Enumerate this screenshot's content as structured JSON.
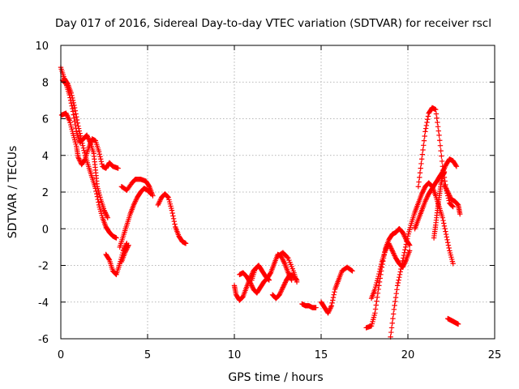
{
  "chart_data": {
    "type": "scatter",
    "title": "Day 017 of 2016, Sidereal Day-to-day VTEC variation (SDTVAR) for receiver rscl",
    "xlabel": "GPS time / hours",
    "ylabel": "SDTVAR / TECUs",
    "xlim": [
      0,
      25
    ],
    "ylim": [
      -6,
      10
    ],
    "xticks": [
      0,
      5,
      10,
      15,
      20,
      25
    ],
    "yticks": [
      -6,
      -4,
      -2,
      0,
      2,
      4,
      6,
      8,
      10
    ],
    "grid": true,
    "marker": "+",
    "color": "#ff0000",
    "series": [
      {
        "name": "s1",
        "points": [
          [
            0.0,
            8.8
          ],
          [
            0.2,
            8.2
          ],
          [
            0.4,
            7.9
          ],
          [
            0.6,
            7.4
          ],
          [
            0.8,
            6.6
          ],
          [
            1.0,
            5.6
          ],
          [
            1.2,
            4.8
          ],
          [
            1.4,
            4.0
          ],
          [
            1.6,
            3.4
          ],
          [
            1.8,
            2.8
          ],
          [
            2.0,
            2.2
          ],
          [
            2.2,
            1.3
          ],
          [
            2.4,
            0.6
          ],
          [
            2.6,
            0.1
          ],
          [
            2.8,
            -0.2
          ],
          [
            3.0,
            -0.4
          ],
          [
            3.2,
            -0.5
          ]
        ]
      },
      {
        "name": "s2",
        "points": [
          [
            0.05,
            6.2
          ],
          [
            0.3,
            6.3
          ],
          [
            0.5,
            5.9
          ],
          [
            0.7,
            5.2
          ],
          [
            0.9,
            4.5
          ],
          [
            1.0,
            3.9
          ],
          [
            1.2,
            3.5
          ],
          [
            1.4,
            3.8
          ],
          [
            1.6,
            4.4
          ],
          [
            1.8,
            4.9
          ],
          [
            2.0,
            4.8
          ],
          [
            2.2,
            4.2
          ],
          [
            2.4,
            3.4
          ],
          [
            2.6,
            3.3
          ],
          [
            2.8,
            3.6
          ],
          [
            3.0,
            3.4
          ],
          [
            3.3,
            3.3
          ]
        ]
      },
      {
        "name": "s3",
        "points": [
          [
            0.1,
            8.1
          ],
          [
            0.3,
            7.9
          ],
          [
            0.5,
            7.3
          ],
          [
            0.7,
            6.4
          ],
          [
            0.9,
            5.3
          ],
          [
            1.1,
            4.7
          ],
          [
            1.3,
            4.9
          ],
          [
            1.5,
            5.1
          ],
          [
            1.7,
            4.7
          ],
          [
            1.9,
            4.1
          ],
          [
            2.0,
            3.2
          ],
          [
            2.1,
            2.3
          ],
          [
            2.3,
            1.6
          ],
          [
            2.5,
            1.0
          ],
          [
            2.7,
            0.6
          ]
        ]
      },
      {
        "name": "s4",
        "points": [
          [
            3.5,
            2.3
          ],
          [
            3.8,
            2.1
          ],
          [
            4.1,
            2.5
          ],
          [
            4.3,
            2.7
          ],
          [
            4.6,
            2.7
          ],
          [
            4.9,
            2.6
          ],
          [
            5.1,
            2.3
          ],
          [
            5.3,
            1.8
          ]
        ]
      },
      {
        "name": "s5",
        "points": [
          [
            3.4,
            -1.0
          ],
          [
            3.6,
            -0.4
          ],
          [
            3.8,
            0.2
          ],
          [
            4.0,
            0.8
          ],
          [
            4.2,
            1.3
          ],
          [
            4.4,
            1.7
          ],
          [
            4.6,
            2.0
          ],
          [
            4.8,
            2.2
          ],
          [
            5.0,
            2.1
          ],
          [
            5.2,
            1.9
          ]
        ]
      },
      {
        "name": "s6",
        "points": [
          [
            2.6,
            -1.4
          ],
          [
            2.8,
            -1.7
          ],
          [
            3.0,
            -2.3
          ],
          [
            3.2,
            -2.5
          ],
          [
            3.4,
            -1.9
          ],
          [
            3.6,
            -1.2
          ],
          [
            3.8,
            -0.8
          ]
        ]
      },
      {
        "name": "s7",
        "points": [
          [
            3.5,
            -1.8
          ],
          [
            3.7,
            -1.3
          ],
          [
            3.9,
            -0.9
          ]
        ]
      },
      {
        "name": "s8",
        "points": [
          [
            5.6,
            1.3
          ],
          [
            5.8,
            1.7
          ],
          [
            6.0,
            1.9
          ],
          [
            6.2,
            1.7
          ],
          [
            6.4,
            1.0
          ],
          [
            6.6,
            0.1
          ],
          [
            6.8,
            -0.4
          ],
          [
            7.0,
            -0.7
          ],
          [
            7.2,
            -0.8
          ]
        ]
      },
      {
        "name": "s9",
        "points": [
          [
            10.0,
            -3.1
          ],
          [
            10.1,
            -3.6
          ],
          [
            10.3,
            -3.9
          ],
          [
            10.5,
            -3.7
          ],
          [
            10.7,
            -3.2
          ],
          [
            10.9,
            -2.7
          ],
          [
            11.1,
            -2.3
          ],
          [
            11.3,
            -2.1
          ]
        ]
      },
      {
        "name": "s10",
        "points": [
          [
            10.3,
            -2.5
          ],
          [
            10.5,
            -2.4
          ],
          [
            10.7,
            -2.6
          ],
          [
            10.9,
            -2.9
          ],
          [
            11.1,
            -3.3
          ],
          [
            11.3,
            -3.5
          ],
          [
            11.5,
            -3.2
          ],
          [
            11.7,
            -2.9
          ],
          [
            11.9,
            -2.7
          ],
          [
            12.1,
            -2.4
          ],
          [
            12.3,
            -1.9
          ],
          [
            12.5,
            -1.4
          ],
          [
            12.7,
            -1.5
          ],
          [
            12.9,
            -1.9
          ],
          [
            13.1,
            -2.4
          ],
          [
            13.3,
            -2.8
          ]
        ]
      },
      {
        "name": "s11",
        "points": [
          [
            11.0,
            -2.8
          ],
          [
            11.2,
            -2.2
          ],
          [
            11.4,
            -2.0
          ],
          [
            11.6,
            -2.3
          ],
          [
            11.8,
            -2.6
          ],
          [
            12.0,
            -2.8
          ]
        ]
      },
      {
        "name": "s12",
        "points": [
          [
            12.2,
            -3.6
          ],
          [
            12.4,
            -3.8
          ],
          [
            12.6,
            -3.6
          ],
          [
            12.8,
            -3.2
          ],
          [
            13.0,
            -2.8
          ],
          [
            13.2,
            -2.5
          ],
          [
            13.4,
            -2.6
          ],
          [
            13.6,
            -2.8
          ]
        ]
      },
      {
        "name": "s13",
        "points": [
          [
            12.5,
            -1.5
          ],
          [
            12.8,
            -1.3
          ],
          [
            13.1,
            -1.6
          ],
          [
            13.4,
            -2.3
          ],
          [
            13.6,
            -2.9
          ]
        ]
      },
      {
        "name": "s14",
        "points": [
          [
            13.9,
            -4.1
          ],
          [
            14.1,
            -4.2
          ],
          [
            14.3,
            -4.2
          ],
          [
            14.5,
            -4.3
          ],
          [
            14.7,
            -4.3
          ]
        ]
      },
      {
        "name": "s15",
        "points": [
          [
            15.0,
            -4.0
          ],
          [
            15.2,
            -4.3
          ],
          [
            15.4,
            -4.6
          ],
          [
            15.6,
            -4.2
          ],
          [
            15.8,
            -3.3
          ],
          [
            16.0,
            -2.8
          ],
          [
            16.2,
            -2.3
          ],
          [
            16.5,
            -2.1
          ],
          [
            16.8,
            -2.3
          ]
        ]
      },
      {
        "name": "s16",
        "points": [
          [
            17.6,
            -5.4
          ],
          [
            17.9,
            -5.3
          ],
          [
            18.1,
            -4.6
          ],
          [
            18.3,
            -3.3
          ],
          [
            18.5,
            -2.1
          ],
          [
            18.7,
            -1.1
          ],
          [
            18.9,
            -0.6
          ],
          [
            19.1,
            -0.3
          ],
          [
            19.3,
            -0.2
          ],
          [
            19.5,
            0.0
          ],
          [
            19.7,
            -0.2
          ],
          [
            19.9,
            -0.6
          ],
          [
            20.1,
            -0.9
          ]
        ]
      },
      {
        "name": "s17",
        "points": [
          [
            17.9,
            -3.8
          ],
          [
            18.1,
            -3.3
          ],
          [
            18.3,
            -2.6
          ],
          [
            18.5,
            -1.8
          ],
          [
            18.7,
            -1.2
          ],
          [
            18.9,
            -0.8
          ],
          [
            19.1,
            -1.2
          ],
          [
            19.3,
            -1.6
          ],
          [
            19.5,
            -1.9
          ],
          [
            19.7,
            -2.1
          ],
          [
            19.9,
            -1.7
          ],
          [
            20.1,
            -1.2
          ]
        ]
      },
      {
        "name": "s18",
        "points": [
          [
            19.0,
            -5.9
          ],
          [
            19.2,
            -4.4
          ],
          [
            19.4,
            -3.1
          ],
          [
            19.6,
            -2.2
          ],
          [
            19.8,
            -1.3
          ],
          [
            20.0,
            -0.4
          ],
          [
            20.2,
            0.3
          ],
          [
            20.4,
            0.9
          ],
          [
            20.6,
            1.4
          ],
          [
            20.8,
            1.9
          ],
          [
            21.0,
            2.3
          ],
          [
            21.2,
            2.5
          ],
          [
            21.4,
            2.3
          ],
          [
            21.6,
            1.8
          ],
          [
            21.8,
            1.2
          ],
          [
            22.0,
            0.6
          ],
          [
            22.2,
            -0.3
          ],
          [
            22.4,
            -1.2
          ],
          [
            22.6,
            -1.9
          ]
        ]
      },
      {
        "name": "s19",
        "points": [
          [
            20.6,
            2.3
          ],
          [
            20.8,
            3.8
          ],
          [
            21.0,
            5.3
          ],
          [
            21.2,
            6.3
          ],
          [
            21.4,
            6.6
          ],
          [
            21.6,
            6.5
          ],
          [
            21.8,
            5.1
          ],
          [
            22.0,
            3.4
          ],
          [
            22.2,
            2.2
          ],
          [
            22.4,
            1.4
          ],
          [
            22.6,
            1.2
          ]
        ]
      },
      {
        "name": "s20",
        "points": [
          [
            20.4,
            0.0
          ],
          [
            20.6,
            0.5
          ],
          [
            20.8,
            1.0
          ],
          [
            21.0,
            1.5
          ],
          [
            21.2,
            1.9
          ],
          [
            21.4,
            2.2
          ],
          [
            21.6,
            2.5
          ],
          [
            21.8,
            2.8
          ],
          [
            22.0,
            3.1
          ],
          [
            22.2,
            3.5
          ],
          [
            22.4,
            3.8
          ],
          [
            22.6,
            3.7
          ],
          [
            22.8,
            3.4
          ]
        ]
      },
      {
        "name": "s21",
        "points": [
          [
            22.1,
            2.4
          ],
          [
            22.3,
            2.0
          ],
          [
            22.5,
            1.6
          ],
          [
            22.7,
            1.5
          ],
          [
            22.9,
            1.3
          ],
          [
            23.0,
            0.8
          ]
        ]
      },
      {
        "name": "s22",
        "points": [
          [
            22.3,
            -4.9
          ],
          [
            22.5,
            -5.0
          ],
          [
            22.7,
            -5.1
          ],
          [
            22.9,
            -5.2
          ]
        ]
      },
      {
        "name": "s23",
        "points": [
          [
            21.5,
            -0.5
          ],
          [
            21.6,
            0.2
          ],
          [
            21.7,
            1.0
          ],
          [
            21.8,
            1.7
          ],
          [
            21.9,
            2.4
          ],
          [
            22.0,
            2.9
          ],
          [
            22.1,
            3.1
          ]
        ]
      }
    ]
  }
}
